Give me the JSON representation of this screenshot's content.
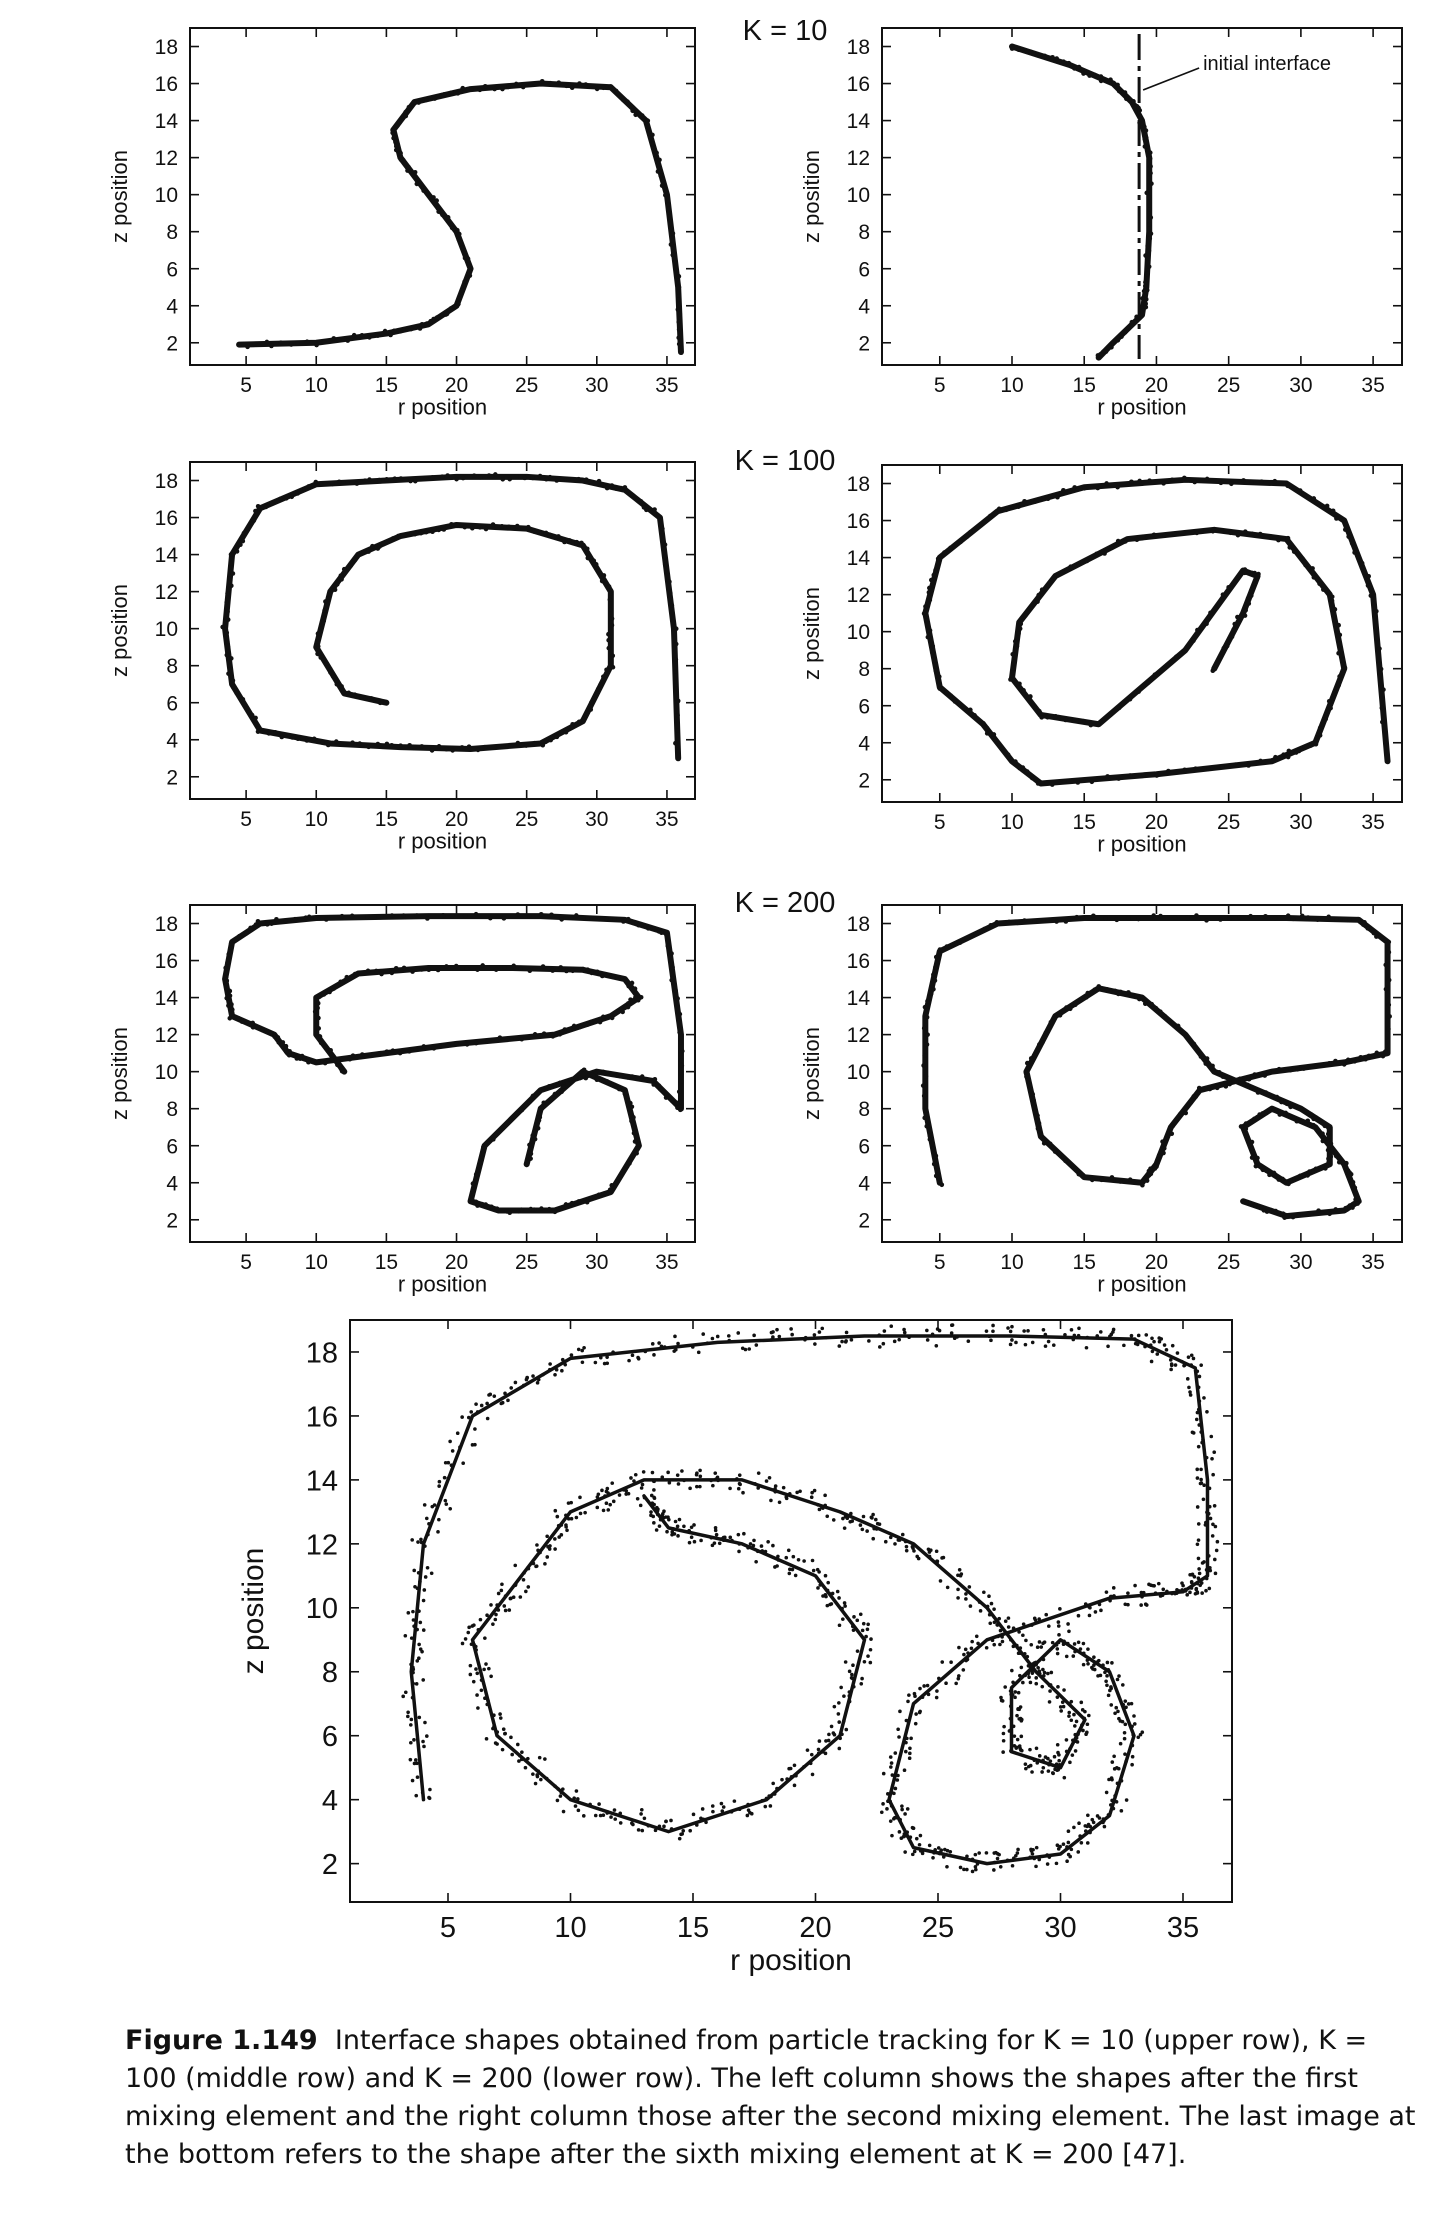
{
  "figure": {
    "axis_labels": {
      "x": "r position",
      "z": "z position"
    },
    "x_ticks": [
      5,
      10,
      15,
      20,
      25,
      30,
      35
    ],
    "y_ticks": [
      2,
      4,
      6,
      8,
      10,
      12,
      14,
      16,
      18
    ],
    "row_labels": [
      "K = 10",
      "K = 100",
      "K = 200"
    ],
    "annotation": "initial interface",
    "caption": {
      "label": "Figure 1.149",
      "text": "Interface shapes obtained from particle tracking for K = 10 (upper row), K = 100 (middle row) and K = 200 (lower row). The left column shows the shapes after the first mixing element and the right column those after the second mixing element. The last image at the bottom refers to the shape after the sixth mixing element at K = 200 [47]."
    }
  },
  "chart_data": [
    {
      "type": "scatter",
      "row": "K = 10",
      "column": "first mixing element",
      "xlabel": "r position",
      "ylabel": "z position",
      "xlim": [
        1,
        37
      ],
      "ylim": [
        0.8,
        19
      ],
      "x_ticks": [
        5,
        10,
        15,
        20,
        25,
        30,
        35
      ],
      "y_ticks": [
        2,
        4,
        6,
        8,
        10,
        12,
        14,
        16,
        18
      ],
      "x": [
        4.5,
        10,
        15,
        18,
        20,
        21,
        20,
        18,
        16,
        15.5,
        17,
        21,
        26,
        31,
        33.5,
        35,
        35.8,
        36
      ],
      "y": [
        1.9,
        2,
        2.5,
        3,
        4,
        6,
        8,
        10,
        12,
        13.5,
        15,
        15.7,
        16,
        15.8,
        14,
        10,
        5,
        1.5
      ]
    },
    {
      "type": "scatter",
      "row": "K = 10",
      "column": "second mixing element",
      "xlabel": "r position",
      "ylabel": "z position",
      "xlim": [
        1,
        37
      ],
      "ylim": [
        0.8,
        19
      ],
      "x_ticks": [
        5,
        10,
        15,
        20,
        25,
        30,
        35
      ],
      "y_ticks": [
        2,
        4,
        6,
        8,
        10,
        12,
        14,
        16,
        18
      ],
      "x": [
        10,
        14,
        17,
        18.3,
        19,
        19.5,
        19.5,
        19.3,
        19,
        17,
        16
      ],
      "y": [
        18,
        17,
        16,
        15,
        14,
        12,
        8,
        5,
        3.5,
        2,
        1.2
      ],
      "reference_line": {
        "x": 18.8,
        "label": "initial interface"
      }
    },
    {
      "type": "scatter",
      "row": "K = 100",
      "column": "first mixing element",
      "xlabel": "r position",
      "ylabel": "z position",
      "xlim": [
        1,
        37
      ],
      "ylim": [
        0.8,
        19
      ],
      "x_ticks": [
        5,
        10,
        15,
        20,
        25,
        30,
        35
      ],
      "y_ticks": [
        2,
        4,
        6,
        8,
        10,
        12,
        14,
        16,
        18
      ],
      "x": [
        15,
        12,
        10,
        11,
        13,
        16,
        20,
        25,
        29,
        31,
        31,
        29,
        26,
        21,
        16,
        11,
        6,
        4,
        3.5,
        4,
        6,
        10,
        15,
        20,
        25,
        29,
        32,
        34.5,
        35.5,
        35.8
      ],
      "y": [
        6,
        6.5,
        9,
        12,
        14,
        15,
        15.6,
        15.4,
        14.5,
        12,
        8,
        5,
        3.8,
        3.5,
        3.6,
        3.8,
        4.5,
        7,
        10,
        14,
        16.5,
        17.8,
        18,
        18.2,
        18.2,
        18,
        17.5,
        16,
        10,
        3
      ]
    },
    {
      "type": "scatter",
      "row": "K = 100",
      "column": "second mixing element",
      "xlabel": "r position",
      "ylabel": "z position",
      "xlim": [
        1,
        37
      ],
      "ylim": [
        0.8,
        19
      ],
      "x_ticks": [
        5,
        10,
        15,
        20,
        25,
        30,
        35
      ],
      "y_ticks": [
        2,
        4,
        6,
        8,
        10,
        12,
        14,
        16,
        18
      ],
      "x": [
        24,
        26,
        27,
        26,
        22,
        16,
        12,
        10,
        10.5,
        13,
        18,
        24,
        29,
        32,
        33,
        31,
        28,
        20,
        12,
        10,
        8,
        5,
        4,
        5,
        9,
        15,
        22,
        29,
        33,
        35,
        36
      ],
      "y": [
        8,
        11,
        13,
        13.3,
        9,
        5,
        5.5,
        7.5,
        10.5,
        13,
        15,
        15.5,
        15,
        12,
        8,
        4,
        3,
        2.3,
        1.8,
        3,
        5,
        7,
        11,
        14,
        16.5,
        17.8,
        18.2,
        18,
        16,
        12,
        3
      ]
    },
    {
      "type": "scatter",
      "row": "K = 200",
      "column": "first mixing element",
      "xlabel": "r position",
      "ylabel": "z position",
      "xlim": [
        1,
        37
      ],
      "ylim": [
        0.8,
        19
      ],
      "x_ticks": [
        5,
        10,
        15,
        20,
        25,
        30,
        35
      ],
      "y_ticks": [
        2,
        4,
        6,
        8,
        10,
        12,
        14,
        16,
        18
      ],
      "x": [
        12,
        10,
        10,
        13,
        18,
        24,
        29,
        32,
        33,
        31,
        27,
        20,
        15,
        10,
        8,
        7,
        4,
        3.5,
        4,
        6,
        10,
        18,
        26,
        32,
        35,
        36,
        36,
        34,
        30,
        26,
        22,
        21,
        23,
        27,
        31,
        33,
        32,
        29,
        26,
        25
      ],
      "y": [
        10,
        12,
        14,
        15.3,
        15.6,
        15.6,
        15.5,
        15,
        14,
        13,
        12,
        11.5,
        11,
        10.5,
        11,
        12,
        13,
        15,
        17,
        18,
        18.3,
        18.4,
        18.4,
        18.2,
        17.5,
        12,
        8,
        9.5,
        10,
        9,
        6,
        3,
        2.5,
        2.5,
        3.5,
        6,
        9,
        10,
        8,
        5
      ]
    },
    {
      "type": "scatter",
      "row": "K = 200",
      "column": "second mixing element",
      "xlabel": "r position",
      "ylabel": "z position",
      "xlim": [
        1,
        37
      ],
      "ylim": [
        0.8,
        19
      ],
      "x_ticks": [
        5,
        10,
        15,
        20,
        25,
        30,
        35
      ],
      "y_ticks": [
        2,
        4,
        6,
        8,
        10,
        12,
        14,
        16,
        18
      ],
      "x": [
        5,
        4,
        4,
        5,
        9,
        15,
        22,
        29,
        34,
        36,
        36,
        33,
        28,
        23,
        21,
        20,
        19,
        15,
        12,
        11,
        13,
        16,
        19,
        22,
        24,
        27,
        30,
        32,
        32,
        29,
        27,
        26,
        28,
        31,
        33,
        34,
        33,
        29,
        26
      ],
      "y": [
        4,
        8,
        13,
        16.5,
        18,
        18.3,
        18.3,
        18.3,
        18.2,
        17,
        11,
        10.5,
        10,
        9,
        7,
        5,
        4,
        4.3,
        6.5,
        10,
        13,
        14.5,
        14,
        12,
        10,
        9,
        8,
        7,
        5,
        4,
        5,
        7,
        8,
        7,
        5,
        3,
        2.5,
        2.2,
        3
      ]
    },
    {
      "type": "scatter",
      "row": "K = 200",
      "column": "sixth mixing element",
      "xlabel": "r position",
      "ylabel": "z position",
      "xlim": [
        1,
        37
      ],
      "ylim": [
        0.8,
        19
      ],
      "x_ticks": [
        5,
        10,
        15,
        20,
        25,
        30,
        35
      ],
      "y_ticks": [
        2,
        4,
        6,
        8,
        10,
        12,
        14,
        16,
        18
      ],
      "x": [
        4,
        3.5,
        4,
        6,
        10,
        16,
        22,
        28,
        33,
        35.5,
        36,
        36,
        35,
        32,
        27,
        24,
        23,
        24,
        27,
        30,
        32,
        33,
        32,
        30,
        28,
        28,
        30,
        31,
        29,
        27,
        24,
        21,
        17,
        13,
        10,
        8,
        6,
        7,
        10,
        14,
        18,
        21,
        22,
        20,
        17,
        14,
        13
      ],
      "y": [
        4,
        8,
        12,
        16,
        17.8,
        18.3,
        18.5,
        18.5,
        18.4,
        17.5,
        14,
        11,
        10.5,
        10.3,
        9,
        7,
        4,
        2.5,
        2,
        2.3,
        3.5,
        6,
        8,
        9,
        7.5,
        5.5,
        5,
        6.5,
        8,
        10,
        12,
        13,
        14,
        14,
        13,
        11,
        9,
        6,
        4,
        3,
        4,
        6,
        9,
        11,
        12,
        12.5,
        13.5
      ]
    }
  ]
}
